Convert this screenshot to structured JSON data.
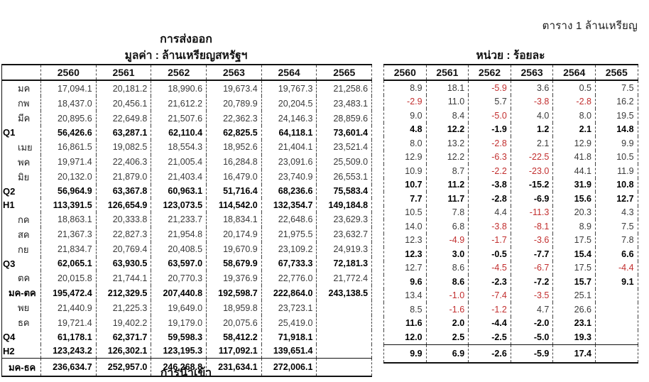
{
  "header": {
    "table_tag": "ตาราง 1 ล้านเหรียญ"
  },
  "export_value_table": {
    "title": "การส่งออก",
    "subtitle": "มูลค่า : ล้านเหรียญสหรัฐฯ",
    "years": [
      "2560",
      "2561",
      "2562",
      "2563",
      "2564",
      "2565"
    ],
    "rows": [
      {
        "label": "มค",
        "bold": false,
        "values": [
          "17,094.1",
          "20,181.2",
          "18,990.6",
          "19,673.4",
          "19,767.3",
          "21,258.6"
        ]
      },
      {
        "label": "กพ",
        "bold": false,
        "values": [
          "18,437.0",
          "20,456.1",
          "21,612.2",
          "20,789.9",
          "20,204.5",
          "23,483.1"
        ]
      },
      {
        "label": "มีค",
        "bold": false,
        "values": [
          "20,895.6",
          "22,649.8",
          "21,507.6",
          "22,362.3",
          "24,146.3",
          "28,859.6"
        ]
      },
      {
        "label": "Q1",
        "bold": true,
        "values": [
          "56,426.6",
          "63,287.1",
          "62,110.4",
          "62,825.5",
          "64,118.1",
          "73,601.4"
        ]
      },
      {
        "label": "เมย",
        "bold": false,
        "values": [
          "16,861.5",
          "19,082.5",
          "18,554.3",
          "18,952.6",
          "21,404.1",
          "23,521.4"
        ]
      },
      {
        "label": "พค",
        "bold": false,
        "values": [
          "19,971.4",
          "22,406.3",
          "21,005.4",
          "16,284.8",
          "23,091.6",
          "25,509.0"
        ]
      },
      {
        "label": "มิย",
        "bold": false,
        "values": [
          "20,132.0",
          "21,879.0",
          "21,403.4",
          "16,479.0",
          "23,740.9",
          "26,553.1"
        ]
      },
      {
        "label": "Q2",
        "bold": true,
        "values": [
          "56,964.9",
          "63,367.8",
          "60,963.1",
          "51,716.4",
          "68,236.6",
          "75,583.4"
        ]
      },
      {
        "label": "H1",
        "bold": true,
        "values": [
          "113,391.5",
          "126,654.9",
          "123,073.5",
          "114,542.0",
          "132,354.7",
          "149,184.8"
        ]
      },
      {
        "label": "กค",
        "bold": false,
        "values": [
          "18,863.1",
          "20,333.8",
          "21,233.7",
          "18,834.1",
          "22,648.6",
          "23,629.3"
        ]
      },
      {
        "label": "สค",
        "bold": false,
        "values": [
          "21,367.3",
          "22,827.3",
          "21,954.8",
          "20,174.9",
          "21,975.5",
          "23,632.7"
        ]
      },
      {
        "label": "กย",
        "bold": false,
        "values": [
          "21,834.7",
          "20,769.4",
          "20,408.5",
          "19,670.9",
          "23,109.2",
          "24,919.3"
        ]
      },
      {
        "label": "Q3",
        "bold": true,
        "values": [
          "62,065.1",
          "63,930.5",
          "63,597.0",
          "58,679.9",
          "67,733.3",
          "72,181.3"
        ]
      },
      {
        "label": "ตค",
        "bold": false,
        "values": [
          "20,015.8",
          "21,744.1",
          "20,770.3",
          "19,376.9",
          "22,776.0",
          "21,772.4"
        ]
      },
      {
        "label": "มค-ตค",
        "bold": true,
        "values": [
          "195,472.4",
          "212,329.5",
          "207,440.8",
          "192,598.7",
          "222,864.0",
          "243,138.5"
        ]
      },
      {
        "label": "พย",
        "bold": false,
        "values": [
          "21,440.9",
          "21,225.3",
          "19,649.0",
          "18,959.8",
          "23,723.1",
          ""
        ]
      },
      {
        "label": "ธค",
        "bold": false,
        "values": [
          "19,721.4",
          "19,402.2",
          "19,179.0",
          "20,075.6",
          "25,419.0",
          ""
        ]
      },
      {
        "label": "Q4",
        "bold": true,
        "values": [
          "61,178.1",
          "62,371.7",
          "59,598.3",
          "58,412.2",
          "71,918.1",
          ""
        ]
      },
      {
        "label": "H2",
        "bold": true,
        "values": [
          "123,243.2",
          "126,302.1",
          "123,195.3",
          "117,092.1",
          "139,651.4",
          ""
        ]
      },
      {
        "label": "มค-ธค",
        "bold": true,
        "values": [
          "236,634.7",
          "252,957.0",
          "246,268.8",
          "231,634.1",
          "272,006.1",
          ""
        ]
      }
    ]
  },
  "export_growth_table": {
    "title": "หน่วย : ร้อยละ",
    "years": [
      "2560",
      "2561",
      "2562",
      "2563",
      "2564",
      "2565"
    ],
    "rows": [
      {
        "bold": false,
        "values": [
          "8.9",
          "18.1",
          "-5.9",
          "3.6",
          "0.5",
          "7.5"
        ]
      },
      {
        "bold": false,
        "values": [
          "-2.9",
          "11.0",
          "5.7",
          "-3.8",
          "-2.8",
          "16.2"
        ]
      },
      {
        "bold": false,
        "values": [
          "9.0",
          "8.4",
          "-5.0",
          "4.0",
          "8.0",
          "19.5"
        ]
      },
      {
        "bold": true,
        "values": [
          "4.8",
          "12.2",
          "-1.9",
          "1.2",
          "2.1",
          "14.8"
        ]
      },
      {
        "bold": false,
        "values": [
          "8.0",
          "13.2",
          "-2.8",
          "2.1",
          "12.9",
          "9.9"
        ]
      },
      {
        "bold": false,
        "values": [
          "12.9",
          "12.2",
          "-6.3",
          "-22.5",
          "41.8",
          "10.5"
        ]
      },
      {
        "bold": false,
        "values": [
          "10.9",
          "8.7",
          "-2.2",
          "-23.0",
          "44.1",
          "11.9"
        ]
      },
      {
        "bold": true,
        "values": [
          "10.7",
          "11.2",
          "-3.8",
          "-15.2",
          "31.9",
          "10.8"
        ]
      },
      {
        "bold": true,
        "values": [
          "7.7",
          "11.7",
          "-2.8",
          "-6.9",
          "15.6",
          "12.7"
        ]
      },
      {
        "bold": false,
        "values": [
          "10.5",
          "7.8",
          "4.4",
          "-11.3",
          "20.3",
          "4.3"
        ]
      },
      {
        "bold": false,
        "values": [
          "14.0",
          "6.8",
          "-3.8",
          "-8.1",
          "8.9",
          "7.5"
        ]
      },
      {
        "bold": false,
        "values": [
          "12.3",
          "-4.9",
          "-1.7",
          "-3.6",
          "17.5",
          "7.8"
        ]
      },
      {
        "bold": true,
        "values": [
          "12.3",
          "3.0",
          "-0.5",
          "-7.7",
          "15.4",
          "6.6"
        ]
      },
      {
        "bold": false,
        "values": [
          "12.7",
          "8.6",
          "-4.5",
          "-6.7",
          "17.5",
          "-4.4"
        ]
      },
      {
        "bold": true,
        "values": [
          "9.6",
          "8.6",
          "-2.3",
          "-7.2",
          "15.7",
          "9.1"
        ]
      },
      {
        "bold": false,
        "values": [
          "13.4",
          "-1.0",
          "-7.4",
          "-3.5",
          "25.1",
          ""
        ]
      },
      {
        "bold": false,
        "values": [
          "8.5",
          "-1.6",
          "-1.2",
          "4.7",
          "26.6",
          ""
        ]
      },
      {
        "bold": true,
        "values": [
          "11.6",
          "2.0",
          "-4.4",
          "-2.0",
          "23.1",
          ""
        ]
      },
      {
        "bold": true,
        "values": [
          "12.0",
          "2.5",
          "-2.5",
          "-5.0",
          "19.3",
          ""
        ]
      },
      {
        "bold": true,
        "values": [
          "9.9",
          "6.9",
          "-2.6",
          "-5.9",
          "17.4",
          ""
        ]
      }
    ]
  },
  "footer": {
    "next_section_title": "การนำเข้า"
  },
  "colors": {
    "negative_value": "#C22E2E",
    "grid_line": "#111111",
    "text": "#3a3a3a"
  }
}
